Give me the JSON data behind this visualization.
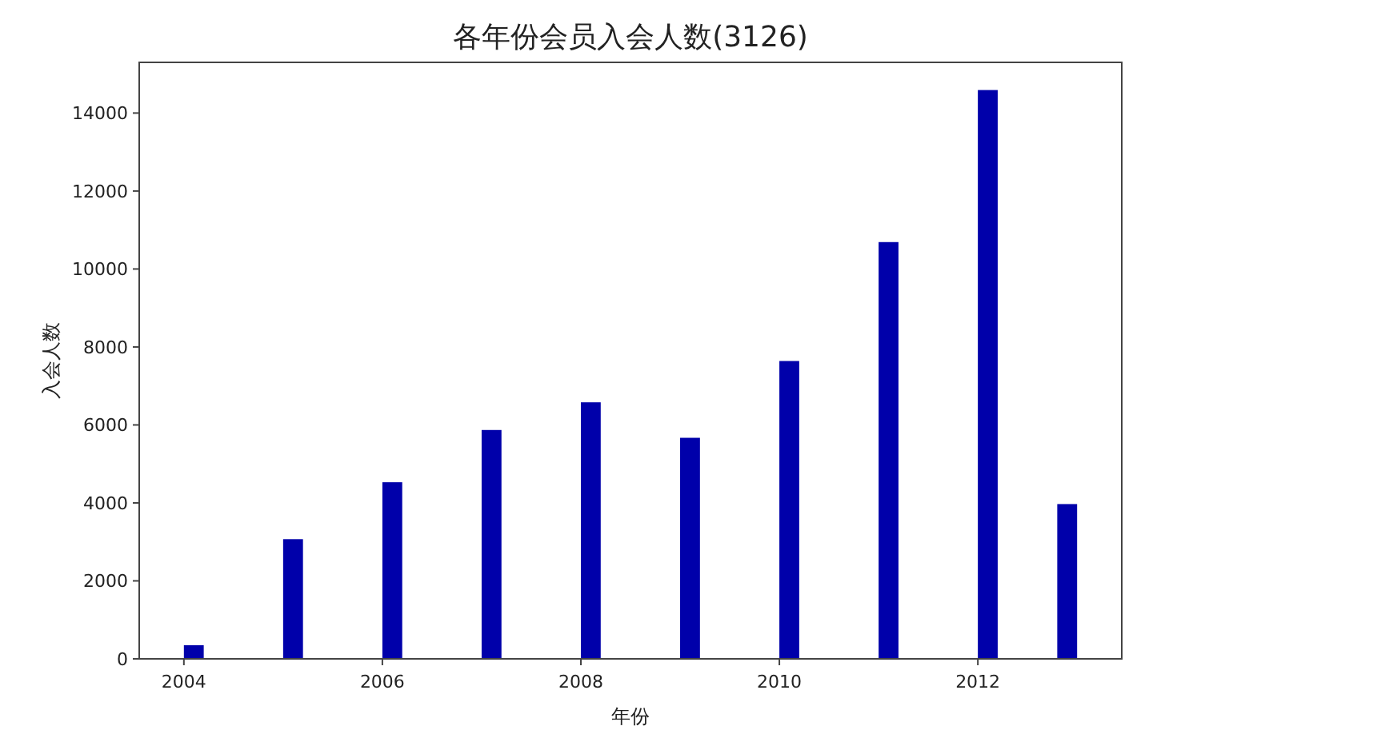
{
  "chart_data": {
    "type": "histogram",
    "title": "各年份会员入会人数(3126)",
    "xlabel": "年份",
    "ylabel": "入会人数",
    "bins": [
      2004,
      2004.2,
      2004.4,
      2004.6,
      2004.8,
      2005,
      2005.2,
      2005.4,
      2005.6,
      2005.8,
      2006,
      2006.2,
      2006.4,
      2006.6,
      2006.8,
      2007,
      2007.2,
      2007.4,
      2007.6,
      2007.8,
      2008,
      2008.2,
      2008.4,
      2008.6,
      2008.8,
      2009,
      2009.2,
      2009.4,
      2009.6,
      2009.8,
      2010,
      2010.2,
      2010.4,
      2010.6,
      2010.8,
      2011,
      2011.2,
      2011.4,
      2011.6,
      2011.8,
      2012,
      2012.2,
      2012.4,
      2012.6,
      2012.8,
      2013
    ],
    "values": [
      350,
      0,
      0,
      0,
      0,
      3070,
      0,
      0,
      0,
      0,
      4530,
      0,
      0,
      0,
      0,
      5870,
      0,
      0,
      0,
      0,
      6580,
      0,
      0,
      0,
      0,
      5670,
      0,
      0,
      0,
      0,
      7640,
      0,
      0,
      0,
      0,
      10690,
      0,
      0,
      0,
      0,
      14590,
      0,
      0,
      0,
      3970
    ],
    "color": "#0000aa",
    "xlim": [
      2003.55,
      2013.45
    ],
    "ylim": [
      0,
      15300
    ],
    "xticks": [
      2004,
      2006,
      2008,
      2010,
      2012
    ],
    "yticks": [
      0,
      2000,
      4000,
      6000,
      8000,
      10000,
      12000,
      14000
    ]
  }
}
